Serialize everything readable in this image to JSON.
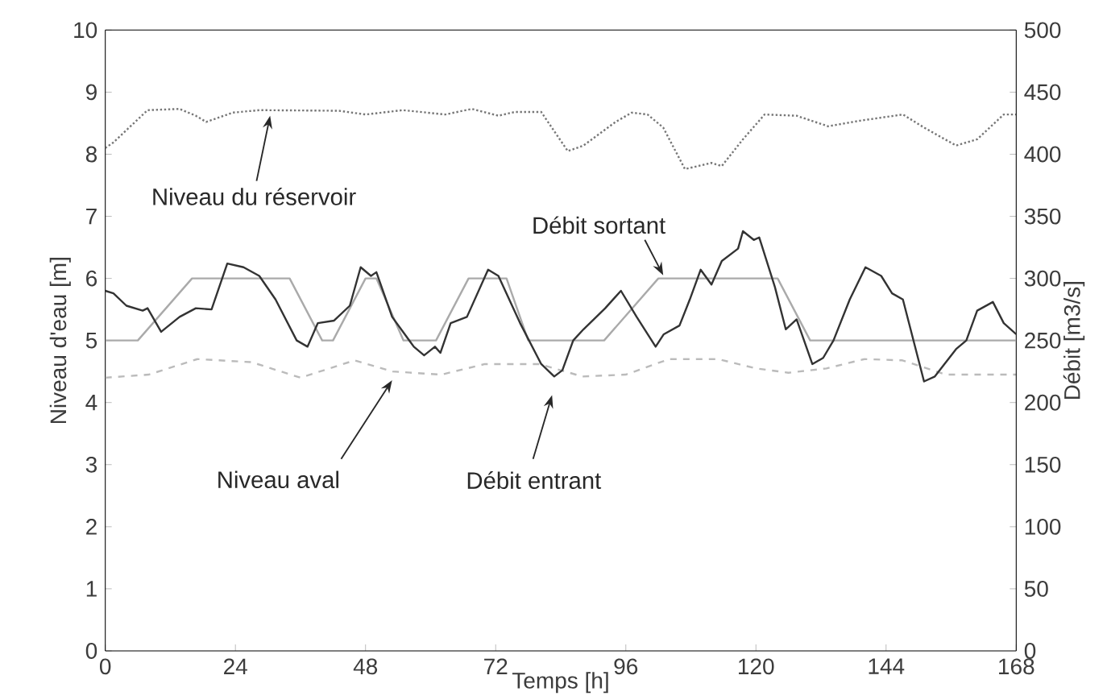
{
  "chart_data": {
    "type": "line",
    "xlabel": "Temps [h]",
    "ylabel": "Niveau d'eau [m]",
    "y2label": "Débit [m3/s]",
    "xlim": [
      0,
      168
    ],
    "xticks": [
      0,
      24,
      48,
      72,
      96,
      120,
      144,
      168
    ],
    "ylim": [
      0,
      10
    ],
    "yticks": [
      0,
      1,
      2,
      3,
      4,
      5,
      6,
      7,
      8,
      9,
      10
    ],
    "y2lim": [
      0,
      500
    ],
    "y2ticks": [
      0,
      50,
      100,
      150,
      200,
      250,
      300,
      350,
      400,
      450,
      500
    ],
    "grid": false,
    "marker": "none",
    "series": [
      {
        "color": "#777777",
        "line_style": "dotted",
        "x": [
          0,
          1.5,
          7.8,
          13.7,
          16.7,
          18.6,
          23.5,
          28.4,
          43.1,
          48,
          54.9,
          62.7,
          67.6,
          72.5,
          75.5,
          80.4,
          85.3,
          88.2,
          94.1,
          97.1,
          100,
          102.9,
          106.9,
          111.8,
          113.7,
          117.6,
          121.6,
          127.5,
          133.3,
          139.2,
          147.1,
          151,
          156.9,
          160.8,
          165.7,
          168
        ],
        "values": [
          8.1,
          8.19,
          8.71,
          8.73,
          8.62,
          8.52,
          8.67,
          8.71,
          8.7,
          8.64,
          8.71,
          8.64,
          8.73,
          8.62,
          8.68,
          8.68,
          8.05,
          8.14,
          8.52,
          8.67,
          8.64,
          8.43,
          7.76,
          7.86,
          7.81,
          8.24,
          8.64,
          8.62,
          8.45,
          8.54,
          8.64,
          8.43,
          8.14,
          8.24,
          8.64,
          8.64
        ]
      },
      {
        "color": "#bbbbbb",
        "line_style": "dashed",
        "x": [
          0,
          8,
          17,
          27,
          36,
          46,
          53,
          62,
          70,
          80,
          88,
          96,
          104,
          113,
          120,
          126,
          133,
          140,
          147,
          155,
          168
        ],
        "values": [
          4.4,
          4.45,
          4.7,
          4.65,
          4.4,
          4.68,
          4.5,
          4.45,
          4.62,
          4.62,
          4.42,
          4.45,
          4.7,
          4.7,
          4.55,
          4.48,
          4.55,
          4.7,
          4.68,
          4.45,
          4.45
        ]
      },
      {
        "color": "#aaaaaa",
        "line_style": "solid",
        "axis": "y2",
        "x": [
          0,
          6,
          16,
          34,
          40,
          42,
          48,
          50,
          55,
          61,
          67,
          74,
          78,
          92,
          102,
          124,
          130,
          168
        ],
        "values": [
          250,
          250,
          300,
          300,
          250,
          250,
          300,
          300,
          250,
          250,
          300,
          300,
          250,
          250,
          300,
          300,
          250,
          250
        ]
      },
      {
        "color": "#333333",
        "line_style": "solid",
        "axis": "y2",
        "x": [
          0,
          1.5,
          3.9,
          6.9,
          7.8,
          10.3,
          13.7,
          16.7,
          19.6,
          22.5,
          25.5,
          28.4,
          31.4,
          35.3,
          37.3,
          39.2,
          42.2,
          45.1,
          47.1,
          49,
          50,
          52.9,
          56.9,
          58.8,
          60.8,
          61.8,
          63.7,
          66.7,
          70.6,
          72.5,
          76.5,
          80.4,
          82.8,
          84.3,
          86.3,
          88.2,
          92.2,
          95.1,
          98,
          101.5,
          103,
          105.9,
          107.8,
          109.8,
          111.8,
          113.7,
          116.7,
          117.6,
          119.6,
          120.6,
          123.5,
          125.5,
          127.5,
          130.4,
          132.4,
          134.3,
          137.3,
          140.2,
          143.1,
          145.1,
          147.1,
          151,
          153,
          156.9,
          158.8,
          160.8,
          163.7,
          165.7,
          168
        ],
        "values": [
          290,
          288,
          278,
          274,
          276,
          257,
          269,
          276,
          275,
          312,
          309,
          302,
          283,
          250,
          245,
          264,
          266,
          278,
          309,
          302,
          305,
          269,
          245,
          238,
          245,
          240,
          264,
          269,
          307,
          302,
          264,
          231,
          221,
          226,
          250,
          259,
          276,
          290,
          269,
          245,
          255,
          262,
          283,
          307,
          295,
          314,
          324,
          338,
          331,
          333,
          293,
          259,
          267,
          231,
          236,
          250,
          283,
          309,
          302,
          288,
          283,
          217,
          221,
          243,
          250,
          274,
          281,
          264,
          255
        ]
      }
    ],
    "annotations": [
      {
        "text": "Niveau du réservoir",
        "x": 30.4,
        "y": 8.62
      },
      {
        "text": "Niveau aval",
        "x": 52.9,
        "y": 4.36
      },
      "Débit entrant",
      {
        "text": "Débit sortant",
        "x": 102.9,
        "y": 6.05
      }
    ]
  }
}
